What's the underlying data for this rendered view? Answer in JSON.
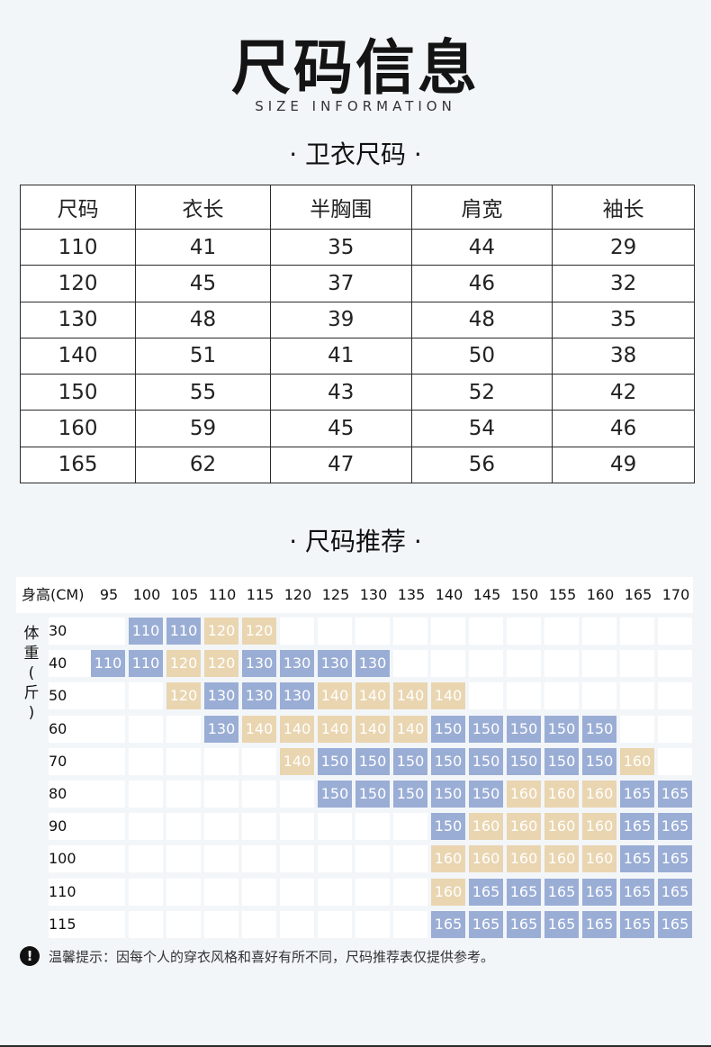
{
  "title": "尺码信息",
  "subtitle": "SIZE INFORMATION",
  "section1": "· 卫衣尺码 ·",
  "size_table": {
    "headers": [
      "尺码",
      "衣长",
      "半胸围",
      "肩宽",
      "袖长"
    ],
    "rows": [
      [
        "110",
        "41",
        "35",
        "44",
        "29"
      ],
      [
        "120",
        "45",
        "37",
        "46",
        "32"
      ],
      [
        "130",
        "48",
        "39",
        "48",
        "35"
      ],
      [
        "140",
        "51",
        "41",
        "50",
        "38"
      ],
      [
        "150",
        "55",
        "43",
        "52",
        "42"
      ],
      [
        "160",
        "59",
        "45",
        "54",
        "46"
      ],
      [
        "165",
        "62",
        "47",
        "56",
        "49"
      ]
    ]
  },
  "section2": "· 尺码推荐 ·",
  "recommend": {
    "height_label": "身高(CM)",
    "heights": [
      "95",
      "100",
      "105",
      "110",
      "115",
      "120",
      "125",
      "130",
      "135",
      "140",
      "145",
      "150",
      "155",
      "160",
      "165",
      "170"
    ],
    "weight_label": "体重(斤)",
    "weights": [
      "30",
      "40",
      "50",
      "60",
      "70",
      "80",
      "90",
      "100",
      "110",
      "115"
    ],
    "colors": {
      "blue": "#9aadd5",
      "tan": "#e9d5b0"
    },
    "grid": [
      [
        "",
        "110",
        "110",
        "120",
        "120",
        "",
        "",
        "",
        "",
        "",
        "",
        "",
        "",
        "",
        "",
        ""
      ],
      [
        "110",
        "110",
        "120",
        "120",
        "130",
        "130",
        "130",
        "130",
        "",
        "",
        "",
        "",
        "",
        "",
        "",
        ""
      ],
      [
        "",
        "",
        "120",
        "130",
        "130",
        "130",
        "140",
        "140",
        "140",
        "140",
        "",
        "",
        "",
        "",
        "",
        ""
      ],
      [
        "",
        "",
        "",
        "130",
        "140",
        "140",
        "140",
        "140",
        "140",
        "150",
        "150",
        "150",
        "150",
        "150",
        "",
        ""
      ],
      [
        "",
        "",
        "",
        "",
        "",
        "140",
        "150",
        "150",
        "150",
        "150",
        "150",
        "150",
        "150",
        "150",
        "160",
        ""
      ],
      [
        "",
        "",
        "",
        "",
        "",
        "",
        "150",
        "150",
        "150",
        "150",
        "150",
        "160",
        "160",
        "160",
        "165",
        "165"
      ],
      [
        "",
        "",
        "",
        "",
        "",
        "",
        "",
        "",
        "",
        "150",
        "160",
        "160",
        "160",
        "160",
        "165",
        "165"
      ],
      [
        "",
        "",
        "",
        "",
        "",
        "",
        "",
        "",
        "",
        "160",
        "160",
        "160",
        "160",
        "160",
        "165",
        "165"
      ],
      [
        "",
        "",
        "",
        "",
        "",
        "",
        "",
        "",
        "",
        "160",
        "165",
        "165",
        "165",
        "165",
        "165",
        "165"
      ],
      [
        "",
        "",
        "",
        "",
        "",
        "",
        "",
        "",
        "",
        "165",
        "165",
        "165",
        "165",
        "165",
        "165",
        "165"
      ]
    ]
  },
  "note": {
    "icon": "exclamation-icon",
    "text": "温馨提示：因每个人的穿衣风格和喜好有所不同，尺码推荐表仅提供参考。"
  }
}
